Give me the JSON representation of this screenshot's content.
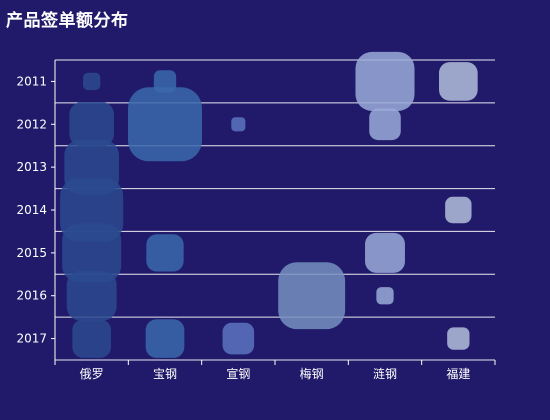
{
  "chart_data": {
    "type": "scatter",
    "title": "产品签单额分布",
    "categories": [
      "俄罗",
      "宝钢",
      "宣钢",
      "梅钢",
      "涟钢",
      "福建"
    ],
    "years": [
      "2011",
      "2012",
      "2013",
      "2014",
      "2015",
      "2016",
      "2017"
    ],
    "bubbles": [
      {
        "category": "俄罗",
        "year": "2011",
        "value": 3,
        "color": "#2a4a8f"
      },
      {
        "category": "俄罗",
        "year": "2012",
        "value": 20,
        "color": "#2a4a8f"
      },
      {
        "category": "俄罗",
        "year": "2013",
        "value": 30,
        "color": "#2a4a8f"
      },
      {
        "category": "俄罗",
        "year": "2014",
        "value": 40,
        "color": "#2a4a8f"
      },
      {
        "category": "俄罗",
        "year": "2015",
        "value": 35,
        "color": "#2a4a8f"
      },
      {
        "category": "俄罗",
        "year": "2016",
        "value": 25,
        "color": "#2a4a8f"
      },
      {
        "category": "俄罗",
        "year": "2017",
        "value": 15,
        "color": "#2a4a8f"
      },
      {
        "category": "宝钢",
        "year": "2011",
        "value": 5,
        "color": "#3a69ab"
      },
      {
        "category": "宝钢",
        "year": "2012",
        "value": 55,
        "color": "#3a69ab"
      },
      {
        "category": "宝钢",
        "year": "2015",
        "value": 14,
        "color": "#3a69ab"
      },
      {
        "category": "宝钢",
        "year": "2017",
        "value": 15,
        "color": "#3a69ab"
      },
      {
        "category": "宣钢",
        "year": "2012",
        "value": 2,
        "color": "#5b74c0"
      },
      {
        "category": "宣钢",
        "year": "2017",
        "value": 10,
        "color": "#5b74c0"
      },
      {
        "category": "梅钢",
        "year": "2016",
        "value": 45,
        "color": "#7692bf"
      },
      {
        "category": "涟钢",
        "year": "2011",
        "value": 35,
        "color": "#9aacd8"
      },
      {
        "category": "涟钢",
        "year": "2012",
        "value": 10,
        "color": "#9aacd8"
      },
      {
        "category": "涟钢",
        "year": "2015",
        "value": 16,
        "color": "#9aacd8"
      },
      {
        "category": "涟钢",
        "year": "2016",
        "value": 3,
        "color": "#9aacd8"
      },
      {
        "category": "福建",
        "year": "2011",
        "value": 15,
        "color": "#b2bfda"
      },
      {
        "category": "福建",
        "year": "2014",
        "value": 7,
        "color": "#b2bfda"
      },
      {
        "category": "福建",
        "year": "2017",
        "value": 5,
        "color": "#b2bfda"
      }
    ],
    "grid": true,
    "legend": "none"
  }
}
